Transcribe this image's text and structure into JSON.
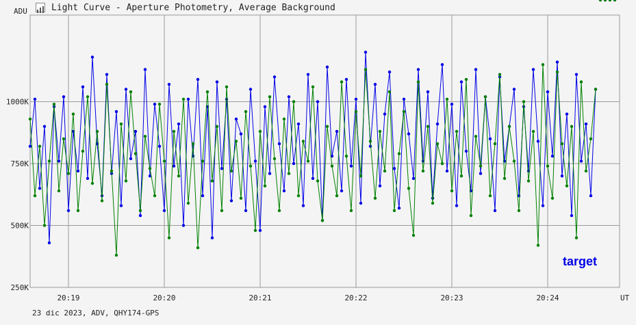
{
  "window": {
    "title": "Light Curve - Aperture Photometry, Average Background",
    "footer": "23 dic 2023, ADV, QHY174-GPS",
    "title_icon": "light-curve-icon"
  },
  "chart_data": {
    "type": "line",
    "title": "Light Curve - Aperture Photometry, Average Background",
    "ylabel": "ADU",
    "xlabel": "UT",
    "ylim": [
      250000,
      1350000
    ],
    "y_ticks": [
      250000,
      500000,
      750000,
      1000000
    ],
    "y_tick_labels": [
      "250K",
      "500K",
      "750K",
      "1000K"
    ],
    "x_tick_labels": [
      "20:19",
      "20:20",
      "20:21",
      "20:22",
      "20:23",
      "20:24"
    ],
    "x_tick_minutes": [
      19,
      20,
      21,
      22,
      23,
      24
    ],
    "x_range_minutes": [
      18.6,
      24.75
    ],
    "grid": true,
    "colors": {
      "series_1": "#0000e6",
      "series_2": "#008000"
    },
    "series": [
      {
        "name": "target",
        "color": "#0000e6",
        "time_minutes": [
          18.6,
          18.65,
          18.7,
          18.75,
          18.8,
          18.85,
          18.9,
          18.95,
          19.0,
          19.05,
          19.1,
          19.15,
          19.2,
          19.25,
          19.3,
          19.35,
          19.4,
          19.45,
          19.5,
          19.55,
          19.6,
          19.65,
          19.7,
          19.75,
          19.8,
          19.85,
          19.9,
          19.95,
          20.0,
          20.05,
          20.1,
          20.15,
          20.2,
          20.25,
          20.3,
          20.35,
          20.4,
          20.45,
          20.5,
          20.55,
          20.6,
          20.65,
          20.7,
          20.75,
          20.8,
          20.85,
          20.9,
          20.95,
          21.0,
          21.05,
          21.1,
          21.15,
          21.2,
          21.25,
          21.3,
          21.35,
          21.4,
          21.45,
          21.5,
          21.55,
          21.6,
          21.65,
          21.7,
          21.75,
          21.8,
          21.85,
          21.9,
          21.95,
          22.0,
          22.05,
          22.1,
          22.15,
          22.2,
          22.25,
          22.3,
          22.35,
          22.4,
          22.45,
          22.5,
          22.55,
          22.6,
          22.65,
          22.7,
          22.75,
          22.8,
          22.85,
          22.9,
          22.95,
          23.0,
          23.05,
          23.1,
          23.15,
          23.2,
          23.25,
          23.3,
          23.35,
          23.4,
          23.45,
          23.5,
          23.55,
          23.6,
          23.65,
          23.7,
          23.75,
          23.8,
          23.85,
          23.9,
          23.95,
          24.0,
          24.05,
          24.1,
          24.15,
          24.2,
          24.25,
          24.3,
          24.35,
          24.4,
          24.45,
          24.5,
          24.55,
          24.6,
          24.65,
          24.7
        ],
        "values": [
          820000,
          1010000,
          650000,
          900000,
          430000,
          980000,
          760000,
          1020000,
          560000,
          880000,
          720000,
          1060000,
          690000,
          1180000,
          830000,
          620000,
          1110000,
          710000,
          960000,
          580000,
          1050000,
          770000,
          880000,
          540000,
          1130000,
          700000,
          990000,
          820000,
          560000,
          1070000,
          740000,
          910000,
          500000,
          1010000,
          780000,
          1090000,
          620000,
          980000,
          450000,
          1080000,
          730000,
          1010000,
          600000,
          930000,
          870000,
          560000,
          1050000,
          760000,
          480000,
          980000,
          710000,
          1100000,
          830000,
          640000,
          1020000,
          750000,
          910000,
          580000,
          1110000,
          690000,
          1000000,
          520000,
          1140000,
          780000,
          880000,
          640000,
          1090000,
          740000,
          1010000,
          590000,
          1200000,
          820000,
          1070000,
          660000,
          950000,
          1120000,
          730000,
          570000,
          1010000,
          870000,
          690000,
          1130000,
          760000,
          1040000,
          610000,
          910000,
          1150000,
          720000,
          990000,
          580000,
          1080000,
          800000,
          640000,
          1130000,
          710000,
          1020000,
          850000,
          560000,
          1100000,
          760000,
          900000,
          1050000,
          620000,
          980000,
          720000,
          1130000,
          840000,
          580000,
          1040000,
          780000,
          1160000,
          700000,
          950000,
          540000,
          1110000,
          760000,
          910000,
          620000,
          1050000
        ]
      },
      {
        "name": "",
        "color": "#008000",
        "time_minutes": [
          18.6,
          18.65,
          18.7,
          18.75,
          18.8,
          18.85,
          18.9,
          18.95,
          19.0,
          19.05,
          19.1,
          19.15,
          19.2,
          19.25,
          19.3,
          19.35,
          19.4,
          19.45,
          19.5,
          19.55,
          19.6,
          19.65,
          19.7,
          19.75,
          19.8,
          19.85,
          19.9,
          19.95,
          20.0,
          20.05,
          20.1,
          20.15,
          20.2,
          20.25,
          20.3,
          20.35,
          20.4,
          20.45,
          20.5,
          20.55,
          20.6,
          20.65,
          20.7,
          20.75,
          20.8,
          20.85,
          20.9,
          20.95,
          21.0,
          21.05,
          21.1,
          21.15,
          21.2,
          21.25,
          21.3,
          21.35,
          21.4,
          21.45,
          21.5,
          21.55,
          21.6,
          21.65,
          21.7,
          21.75,
          21.8,
          21.85,
          21.9,
          21.95,
          22.0,
          22.05,
          22.1,
          22.15,
          22.2,
          22.25,
          22.3,
          22.35,
          22.4,
          22.45,
          22.5,
          22.55,
          22.6,
          22.65,
          22.7,
          22.75,
          22.8,
          22.85,
          22.9,
          22.95,
          23.0,
          23.05,
          23.1,
          23.15,
          23.2,
          23.25,
          23.3,
          23.35,
          23.4,
          23.45,
          23.5,
          23.55,
          23.6,
          23.65,
          23.7,
          23.75,
          23.8,
          23.85,
          23.9,
          23.95,
          24.0,
          24.05,
          24.1,
          24.15,
          24.2,
          24.25,
          24.3,
          24.35,
          24.4,
          24.45,
          24.5,
          24.55,
          24.6,
          24.65,
          24.7
        ],
        "values": [
          930000,
          620000,
          820000,
          500000,
          760000,
          990000,
          640000,
          850000,
          710000,
          950000,
          560000,
          800000,
          1020000,
          670000,
          880000,
          600000,
          1070000,
          720000,
          380000,
          910000,
          680000,
          1040000,
          790000,
          560000,
          860000,
          730000,
          620000,
          990000,
          760000,
          450000,
          880000,
          700000,
          1010000,
          590000,
          830000,
          410000,
          760000,
          1040000,
          680000,
          900000,
          560000,
          1060000,
          720000,
          840000,
          610000,
          960000,
          740000,
          480000,
          880000,
          660000,
          1020000,
          770000,
          560000,
          930000,
          710000,
          1000000,
          620000,
          840000,
          760000,
          1060000,
          680000,
          520000,
          900000,
          740000,
          620000,
          1080000,
          780000,
          560000,
          960000,
          700000,
          1130000,
          840000,
          610000,
          880000,
          720000,
          1040000,
          560000,
          790000,
          960000,
          650000,
          460000,
          1080000,
          720000,
          900000,
          590000,
          830000,
          750000,
          1010000,
          640000,
          880000,
          700000,
          1090000,
          540000,
          860000,
          740000,
          1020000,
          620000,
          830000,
          1110000,
          690000,
          900000,
          760000,
          560000,
          1000000,
          680000,
          880000,
          420000,
          1150000,
          740000,
          610000,
          1120000,
          830000,
          660000,
          900000,
          450000,
          1080000,
          720000,
          850000,
          1050000
        ]
      }
    ]
  }
}
